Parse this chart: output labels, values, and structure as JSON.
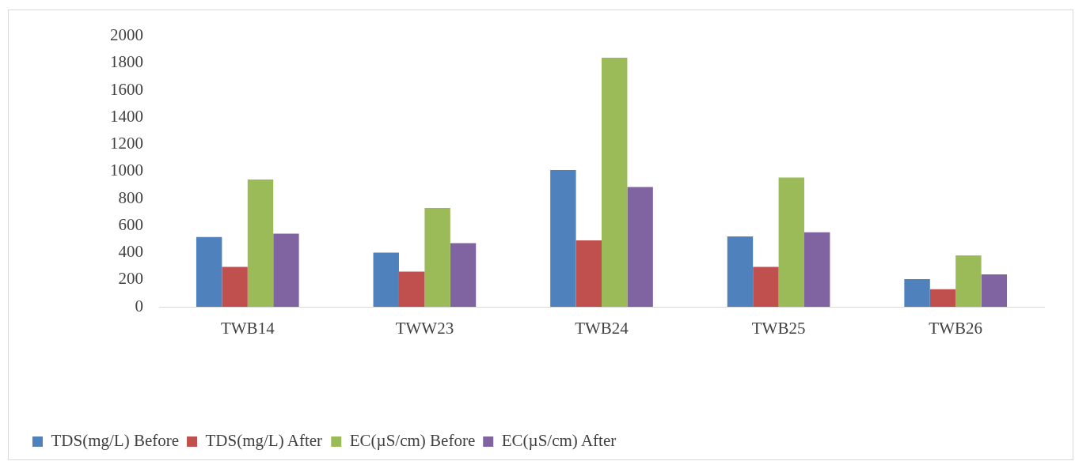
{
  "chart_data": {
    "type": "bar",
    "categories": [
      "TWB14",
      "TWW23",
      "TWB24",
      "TWB25",
      "TWB26"
    ],
    "series": [
      {
        "name": "TDS(mg/L) Before",
        "color": "#4f81bd",
        "values": [
          515,
          400,
          1010,
          520,
          205
        ]
      },
      {
        "name": "TDS(mg/L) After",
        "color": "#c0504d",
        "values": [
          295,
          260,
          490,
          295,
          130
        ]
      },
      {
        "name": "EC(µS/cm) Before",
        "color": "#9bbb59",
        "values": [
          940,
          730,
          1840,
          955,
          380
        ]
      },
      {
        "name": "EC(µS/cm) After",
        "color": "#8064a2",
        "values": [
          540,
          470,
          885,
          550,
          240
        ]
      }
    ],
    "ylim": [
      0,
      2000
    ],
    "yticks": [
      0,
      200,
      400,
      600,
      800,
      1000,
      1200,
      1400,
      1600,
      1800,
      2000
    ],
    "grid": false,
    "legend": "bottom left"
  }
}
